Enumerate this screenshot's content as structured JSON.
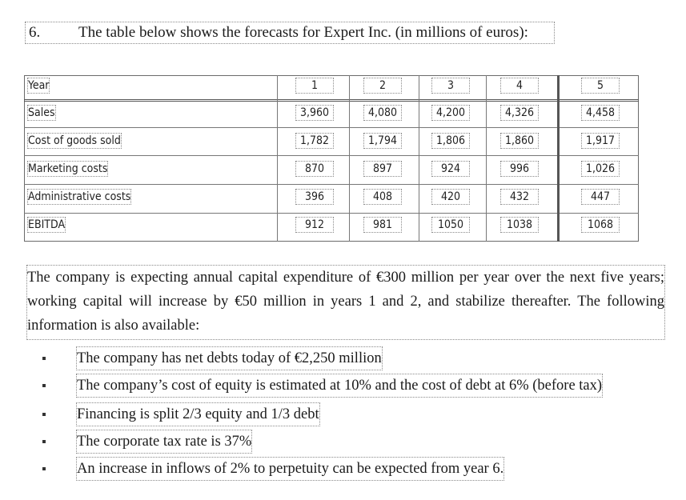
{
  "question": {
    "number": "6.",
    "text": "The table below shows the forecasts for Expert Inc. (in millions of euros):"
  },
  "table": {
    "header_label": "Year",
    "years": [
      "1",
      "2",
      "3",
      "4",
      "5"
    ],
    "rows": [
      {
        "label": "Sales",
        "values": [
          "3,960",
          "4,080",
          "4,200",
          "4,326",
          "4,458"
        ]
      },
      {
        "label": "Cost of goods sold",
        "values": [
          "1,782",
          "1,794",
          "1,806",
          "1,860",
          "1,917"
        ]
      },
      {
        "label": "Marketing costs",
        "values": [
          "870",
          "897",
          "924",
          "996",
          "1,026"
        ]
      },
      {
        "label": "Administrative costs",
        "values": [
          "396",
          "408",
          "420",
          "432",
          "447"
        ]
      },
      {
        "label": "EBITDA",
        "values": [
          "912",
          "981",
          "1050",
          "1038",
          "1068"
        ]
      }
    ]
  },
  "paragraph": "The company is expecting annual capital expenditure of €300 million per year over the next five years; working capital will increase by €50 million in years 1 and 2, and stabilize thereafter. The following information is also available:",
  "bullets": [
    "The company has net debts today of €2,250 million",
    "The company’s cost of equity is estimated at 10% and the cost of debt at 6% (before tax)",
    "Financing is split 2/3 equity and 1/3 debt",
    "The corporate tax rate is 37%",
    "An increase in inflows of 2% to perpetuity can be expected from year 6."
  ]
}
